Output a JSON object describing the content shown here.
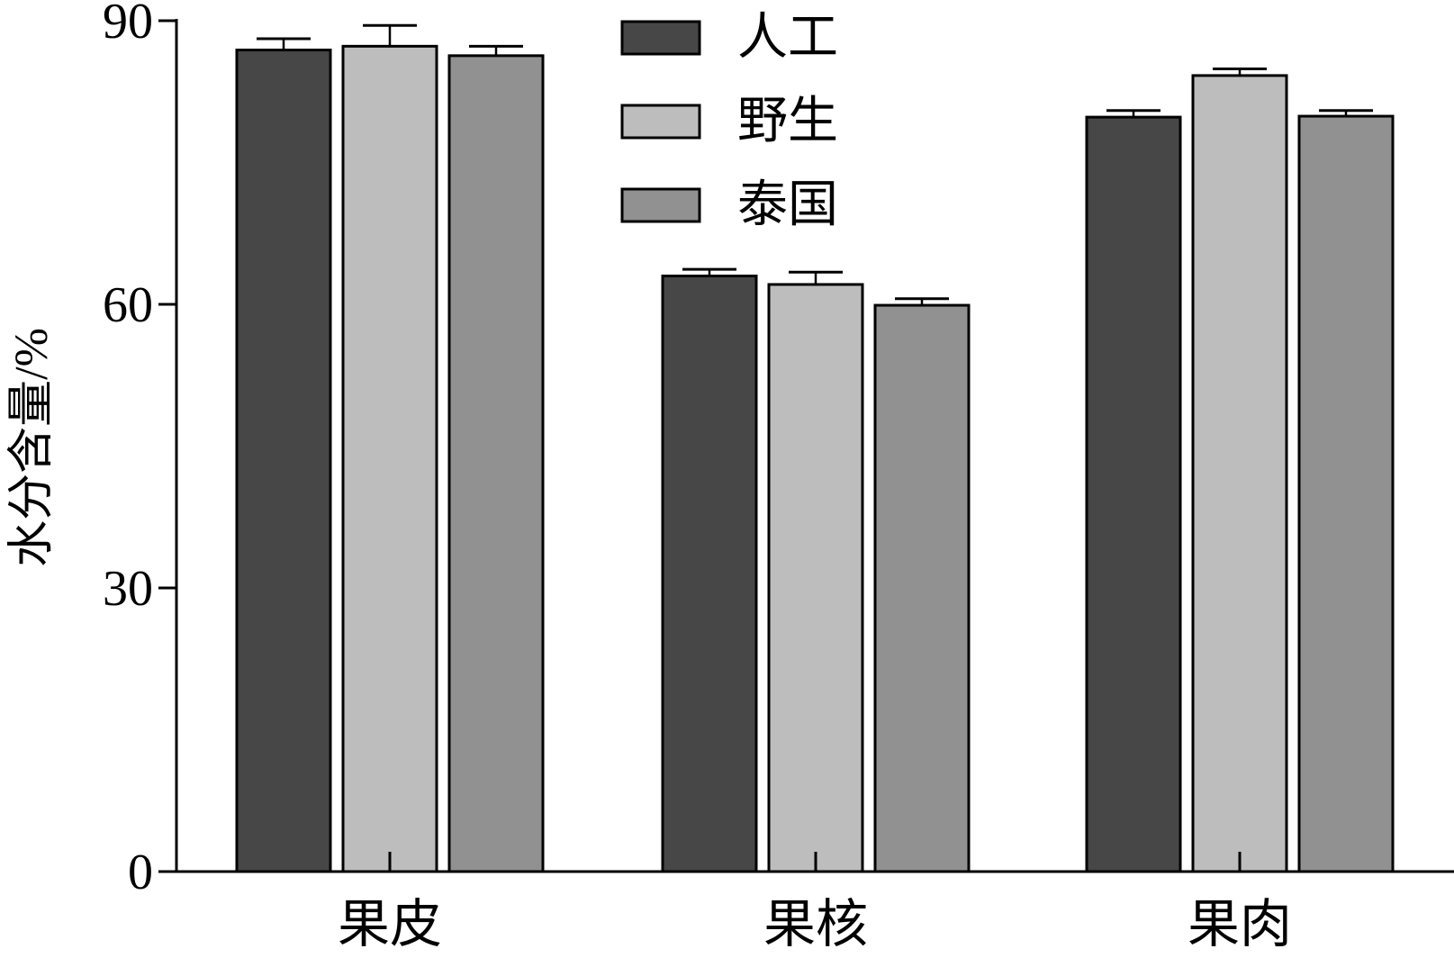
{
  "chart_data": {
    "type": "bar",
    "title": "",
    "xlabel": "",
    "ylabel": "水分含量/%",
    "ylim": [
      0,
      90
    ],
    "yticks": [
      0,
      30,
      60,
      90
    ],
    "categories": [
      "果皮",
      "果核",
      "果肉"
    ],
    "series": [
      {
        "name": "人工",
        "color": "#474747",
        "values": [
          86.9,
          63.0,
          79.8
        ],
        "errors": [
          1.2,
          0.7,
          0.7
        ]
      },
      {
        "name": "野生",
        "color": "#bdbdbd",
        "values": [
          87.3,
          62.1,
          84.2
        ],
        "errors": [
          2.2,
          1.3,
          0.7
        ]
      },
      {
        "name": "泰国",
        "color": "#919191",
        "values": [
          86.3,
          59.9,
          79.9
        ],
        "errors": [
          1.0,
          0.7,
          0.6
        ]
      }
    ],
    "legend": {
      "position": "top-center"
    },
    "grid": false
  }
}
